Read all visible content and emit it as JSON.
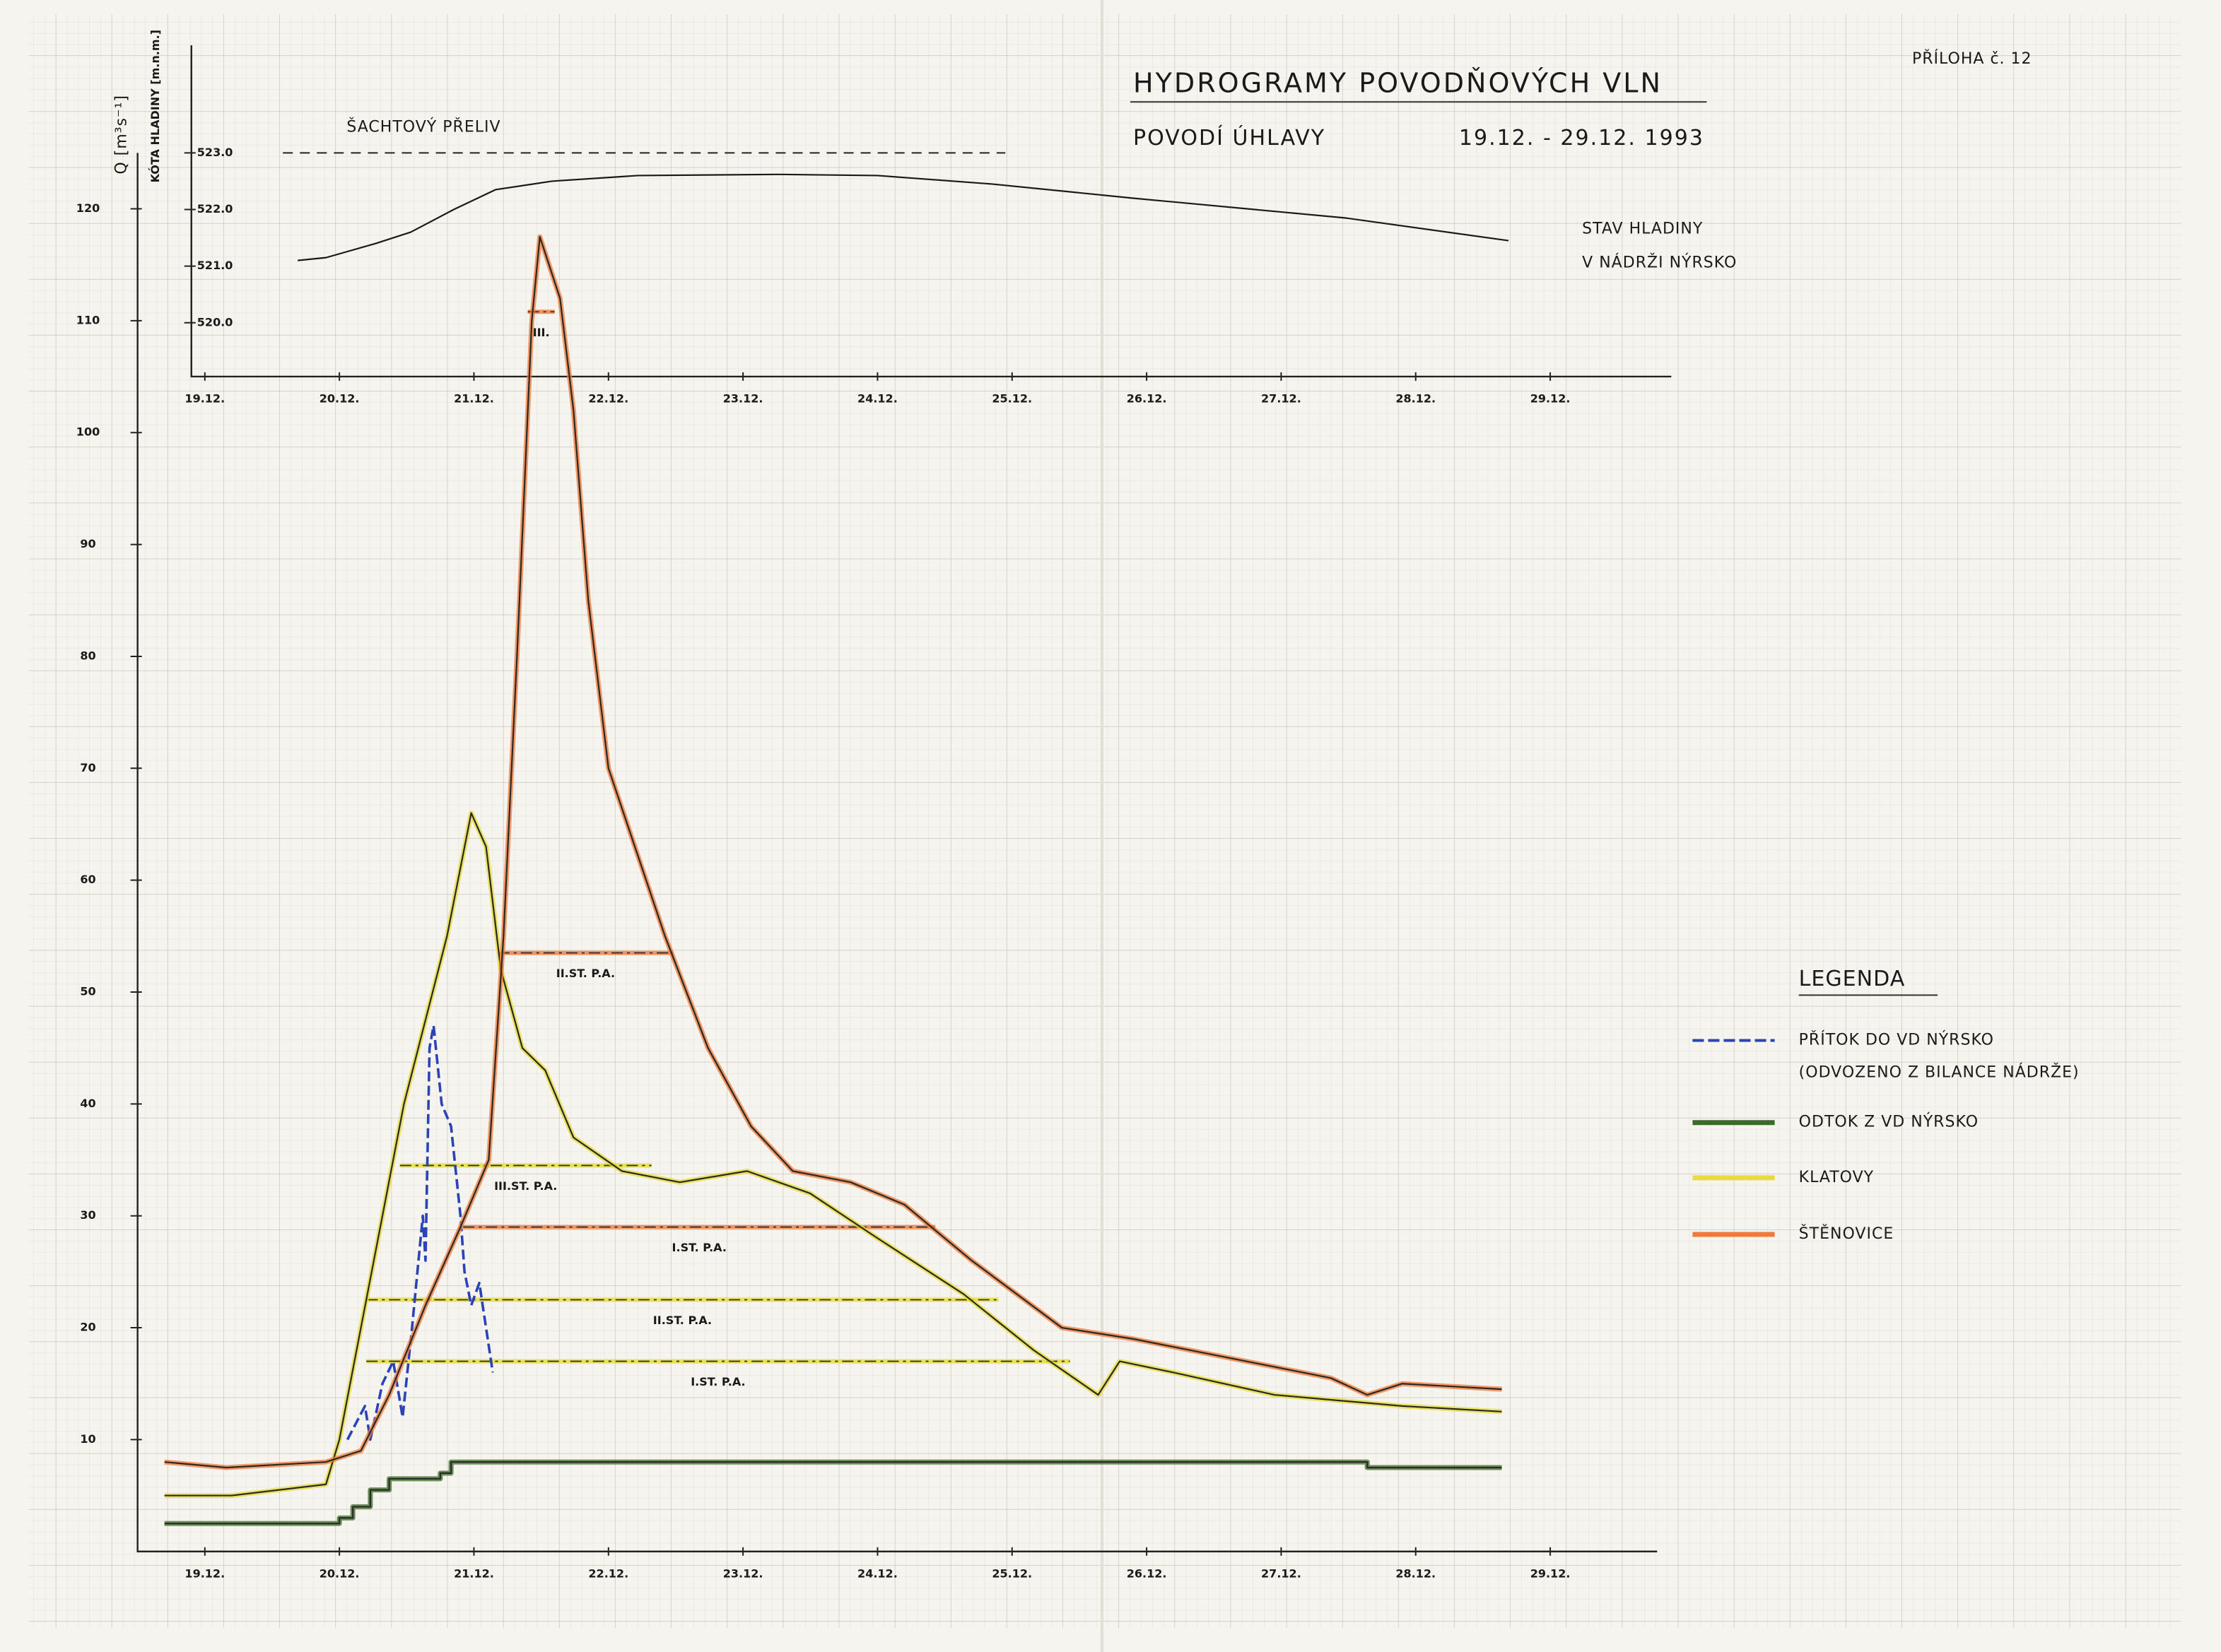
{
  "header": {
    "title": "HYDROGRAMY POVODŇOVÝCH VLN",
    "subtitle": "POVODÍ ÚHLAVY",
    "period": "19.12. - 29.12. 1993",
    "attachment": "PŘÍLOHA č. 12"
  },
  "chart_data": [
    {
      "type": "line",
      "y_label": "KÓTA HLADINY [m.n.m.]",
      "annotation": [
        "STAV HLADINY",
        "V NÁDRŽI NÝRSKO"
      ],
      "xlim": [
        0,
        11.3
      ],
      "ylim": [
        519.05,
        524.9
      ],
      "xticks": [
        {
          "value": 0.5,
          "label": "19.12."
        },
        {
          "value": 1.5,
          "label": "20.12."
        },
        {
          "value": 2.5,
          "label": "21.12."
        },
        {
          "value": 3.5,
          "label": "22.12."
        },
        {
          "value": 4.5,
          "label": "23.12."
        },
        {
          "value": 5.5,
          "label": "24.12."
        },
        {
          "value": 6.5,
          "label": "25.12."
        },
        {
          "value": 7.5,
          "label": "26.12."
        },
        {
          "value": 8.5,
          "label": "27.12."
        },
        {
          "value": 9.5,
          "label": "28.12."
        },
        {
          "value": 10.5,
          "label": "29.12."
        }
      ],
      "yticks": [
        {
          "value": 520,
          "label": "520.0"
        },
        {
          "value": 521,
          "label": "521.0"
        },
        {
          "value": 522,
          "label": "522.0"
        },
        {
          "value": 523,
          "label": "523.0"
        }
      ],
      "reference_line": {
        "label": "ŠACHTOVÝ PŘELIV",
        "value": 523.0,
        "from": 1.08,
        "to": 6.45
      },
      "series": [
        {
          "color": "#1a1a1a",
          "x": [
            1.19,
            1.4,
            1.77,
            2.03,
            2.35,
            2.66,
            3.08,
            3.72,
            4.77,
            5.5,
            6.35,
            7.4,
            8.98,
            10.19
          ],
          "values": [
            521.1,
            521.15,
            521.4,
            521.6,
            522.0,
            522.35,
            522.5,
            522.6,
            522.62,
            522.6,
            522.45,
            522.2,
            521.85,
            521.45
          ]
        }
      ]
    },
    {
      "type": "line",
      "y_label": "Q [m³s⁻¹]",
      "legend_title": "LEGENDA",
      "xlim": [
        0,
        11.3
      ],
      "ylim": [
        0,
        125
      ],
      "xticks": [
        {
          "value": 0.5,
          "label": "19.12."
        },
        {
          "value": 1.5,
          "label": "20.12."
        },
        {
          "value": 2.5,
          "label": "21.12."
        },
        {
          "value": 3.5,
          "label": "22.12."
        },
        {
          "value": 4.5,
          "label": "23.12."
        },
        {
          "value": 5.5,
          "label": "24.12."
        },
        {
          "value": 6.5,
          "label": "25.12."
        },
        {
          "value": 7.5,
          "label": "26.12."
        },
        {
          "value": 8.5,
          "label": "27.12."
        },
        {
          "value": 9.5,
          "label": "28.12."
        },
        {
          "value": 10.5,
          "label": "29.12."
        }
      ],
      "yticks": [
        10,
        20,
        30,
        40,
        50,
        60,
        70,
        80,
        90,
        100,
        110,
        120
      ],
      "series": [
        {
          "name": "PŘÍTOK DO VD NÝRSKO",
          "note": "(ODVOZENO Z BILANCE NÁDRŽE)",
          "color": "#2a44b8",
          "dashed": true,
          "x": [
            1.56,
            1.69,
            1.73,
            1.82,
            1.9,
            1.97,
            2.04,
            2.12,
            2.14,
            2.17,
            2.2,
            2.26,
            2.33,
            2.4,
            2.43,
            2.48,
            2.54,
            2.64
          ],
          "values": [
            10,
            13,
            10,
            15,
            17,
            12,
            20,
            30,
            26,
            45,
            47,
            40,
            38,
            30,
            25,
            22,
            24,
            16
          ]
        },
        {
          "name": "ODTOK Z VD NÝRSKO",
          "color": "#3a6b2a",
          "x": [
            0.2,
            1.45,
            1.5,
            1.5,
            1.6,
            1.6,
            1.73,
            1.73,
            1.87,
            1.87,
            2.25,
            2.25,
            2.33,
            2.33,
            9.14,
            9.14,
            10.14
          ],
          "values": [
            2.5,
            2.5,
            2.5,
            3,
            3,
            4,
            4,
            5.5,
            5.5,
            6.5,
            6.5,
            7,
            7,
            8,
            8,
            7.5,
            7.5
          ]
        },
        {
          "name": "KLATOVY",
          "color": "#e6dc3a",
          "x": [
            0.2,
            0.7,
            1.4,
            1.5,
            1.66,
            1.98,
            2.3,
            2.48,
            2.59,
            2.7,
            2.86,
            3.03,
            3.24,
            3.6,
            4.03,
            4.53,
            5.0,
            5.5,
            6.14,
            6.66,
            7.14,
            7.3,
            7.7,
            8.45,
            9.4,
            10.14
          ],
          "values": [
            5,
            5,
            6,
            10,
            20,
            40,
            55,
            66,
            63,
            52,
            45,
            43,
            37,
            34,
            33,
            34,
            32,
            28,
            23,
            18,
            14,
            17,
            16,
            14,
            13,
            12.5
          ]
        },
        {
          "name": "ŠTĚNOVICE",
          "color": "#f07a3c",
          "x": [
            0.2,
            0.66,
            1.4,
            1.66,
            1.87,
            2.14,
            2.4,
            2.61,
            2.72,
            2.82,
            2.93,
            2.99,
            3.14,
            3.24,
            3.35,
            3.5,
            3.92,
            4.24,
            4.56,
            4.87,
            5.3,
            5.7,
            6.2,
            6.87,
            7.4,
            8.24,
            8.87,
            9.14,
            9.4,
            10.14
          ],
          "values": [
            8,
            7.5,
            8,
            9,
            14,
            22,
            29,
            35,
            55,
            80,
            110,
            117.5,
            112,
            102,
            85,
            70,
            55,
            45,
            38,
            34,
            33,
            31,
            26,
            20,
            19,
            17,
            15.5,
            14,
            15,
            14.5
          ]
        }
      ],
      "thresholds": [
        {
          "label": "III.",
          "value": 110.8,
          "from": 2.9,
          "to": 3.1,
          "color": "#f07a3c"
        },
        {
          "label": "II.ST. P.A.",
          "value": 53.5,
          "from": 2.68,
          "to": 3.98,
          "color": "#f07a3c"
        },
        {
          "label": "I.ST. P.A.",
          "value": 29,
          "from": 2.42,
          "to": 5.93,
          "color": "#f07a3c"
        },
        {
          "label": "III.ST. P.A.",
          "value": 34.5,
          "from": 1.95,
          "to": 3.82,
          "color": "#e6dc3a"
        },
        {
          "label": "II.ST. P.A.",
          "value": 22.5,
          "from": 1.7,
          "to": 6.4,
          "color": "#e6dc3a"
        },
        {
          "label": "I.ST. P.A.",
          "value": 17,
          "from": 1.7,
          "to": 6.93,
          "color": "#e6dc3a"
        }
      ]
    }
  ]
}
